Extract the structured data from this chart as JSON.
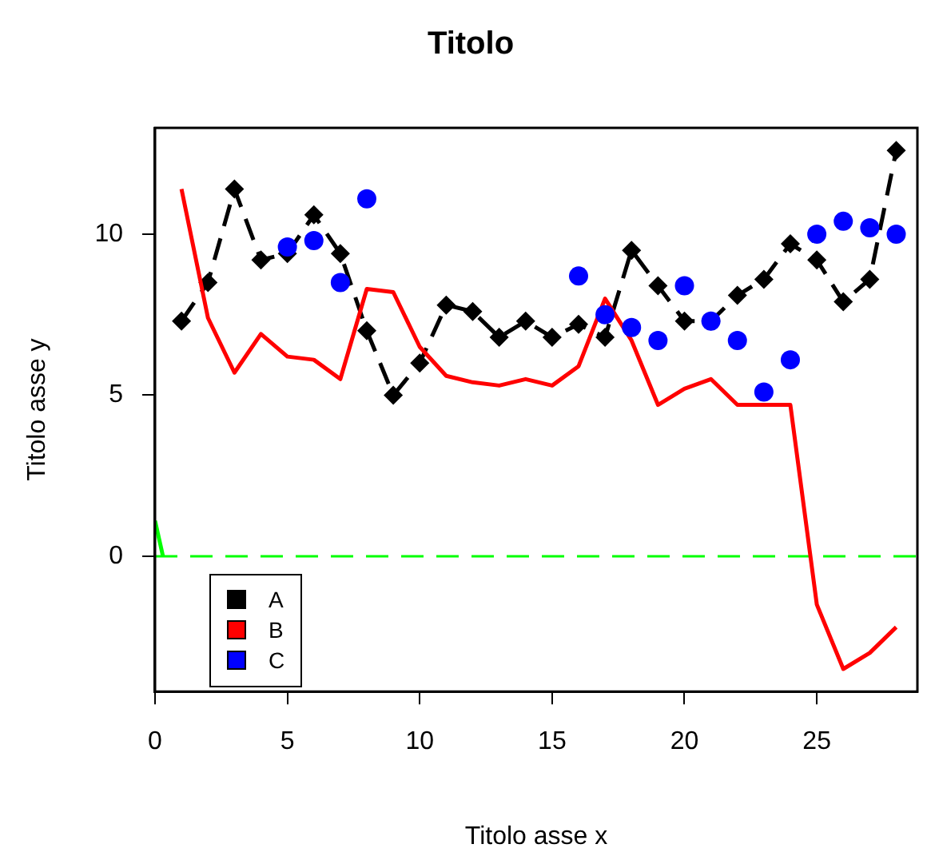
{
  "chart_data": {
    "type": "line",
    "title": "Titolo",
    "xlabel": "Titolo asse x",
    "ylabel": "Titolo asse y",
    "x": [
      1,
      2,
      3,
      4,
      5,
      6,
      7,
      8,
      9,
      10,
      11,
      12,
      13,
      14,
      15,
      16,
      17,
      18,
      19,
      20,
      21,
      22,
      23,
      24,
      25,
      26,
      27,
      28
    ],
    "series": [
      {
        "name": "A",
        "color": "#000000",
        "marker": "diamond",
        "line_style": "dashed",
        "values": [
          7.3,
          8.5,
          11.4,
          9.2,
          9.4,
          10.6,
          9.4,
          7.0,
          5.0,
          6.0,
          7.8,
          7.6,
          6.8,
          7.3,
          6.8,
          7.2,
          6.8,
          9.5,
          8.4,
          7.3,
          7.3,
          8.1,
          8.6,
          9.7,
          9.2,
          7.9,
          8.6,
          12.6
        ]
      },
      {
        "name": "B",
        "color": "#ff0000",
        "marker": "none",
        "line_style": "solid",
        "values": [
          11.4,
          7.4,
          5.7,
          6.9,
          6.2,
          6.1,
          5.5,
          8.3,
          8.2,
          6.5,
          5.6,
          5.4,
          5.3,
          5.5,
          5.3,
          5.9,
          8.0,
          6.7,
          4.7,
          5.2,
          5.5,
          4.7,
          4.7,
          4.7,
          -1.5,
          -3.5,
          -3.0,
          -2.2
        ]
      },
      {
        "name": "C",
        "type": "scatter",
        "color": "#0000ff",
        "marker": "circle",
        "x": [
          5,
          6,
          7,
          8,
          16,
          17,
          18,
          19,
          20,
          21,
          22,
          23,
          24,
          25,
          26,
          27,
          28
        ],
        "values": [
          9.6,
          9.8,
          8.5,
          11.1,
          8.7,
          7.5,
          7.1,
          6.7,
          8.4,
          7.3,
          6.7,
          5.1,
          6.1,
          10.0,
          10.4,
          10.2,
          10.0
        ]
      },
      {
        "type": "line",
        "color": "#00ff00",
        "marker": "none",
        "line_style": "solid",
        "x": [
          0,
          0.3
        ],
        "values": [
          1.1,
          0
        ]
      }
    ],
    "xlim": [
      0,
      28.8
    ],
    "ylim": [
      -4.2,
      13.3
    ],
    "xticks": [
      0,
      5,
      10,
      15,
      20,
      25
    ],
    "yticks": [
      0,
      5,
      10
    ],
    "ref_lines": [
      {
        "axis": "y",
        "value": 0,
        "color": "#00ff00",
        "line_style": "dashed"
      }
    ],
    "grid": false,
    "legend": "bottom left"
  }
}
